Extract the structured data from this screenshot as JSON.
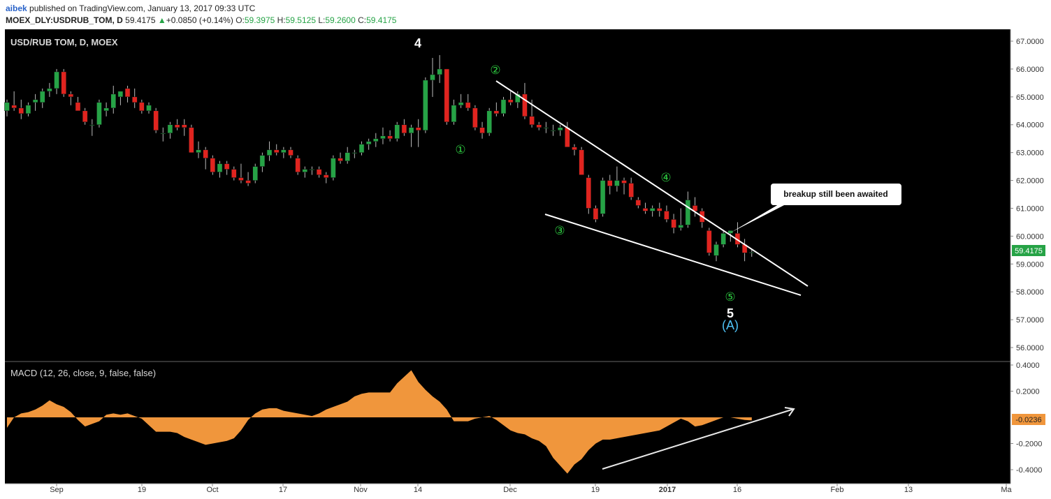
{
  "header": {
    "author": "aibek",
    "published": "published on TradingView.com, January 13, 2017 09:33 UTC",
    "symbol": "MOEX_DLY:USDRUB_TOM, D",
    "last": "59.4175",
    "change": "+0.0850 (+0.14%)",
    "open_label": "O:",
    "open": "59.3975",
    "high_label": "H:",
    "high": "59.5125",
    "low_label": "L:",
    "low": "59.2600",
    "close_label": "C:",
    "close": "59.4175"
  },
  "colors": {
    "up": "#26a346",
    "down": "#e0241f",
    "macd_fill": "#f0963c",
    "wave_green": "#2ecc40",
    "wave_cyan": "#4fc3f7",
    "last_price_bg": "#26a346",
    "macd_value_bg": "#f0963c"
  },
  "chart_data": [
    {
      "type": "candlestick",
      "title": "USD/RUB TOM, D, MOEX",
      "ylim": [
        55.5,
        67.3
      ],
      "y_ticks": [
        "67.0000",
        "66.0000",
        "65.0000",
        "64.0000",
        "63.0000",
        "62.0000",
        "61.0000",
        "60.0000",
        "59.0000",
        "58.0000",
        "57.0000",
        "56.0000"
      ],
      "x_ticks": [
        "Sep",
        "19",
        "Oct",
        "17",
        "Nov",
        "14",
        "Dec",
        "19",
        "2017",
        "16",
        "Feb",
        "13",
        "Ma"
      ],
      "last_price_label": "59.4175",
      "candles": [
        [
          64.5,
          64.9,
          64.3,
          64.8
        ],
        [
          64.7,
          65.2,
          64.5,
          64.6
        ],
        [
          64.6,
          64.9,
          64.2,
          64.4
        ],
        [
          64.4,
          64.8,
          64.3,
          64.7
        ],
        [
          64.8,
          65.1,
          64.5,
          64.9
        ],
        [
          64.8,
          65.3,
          64.6,
          65.2
        ],
        [
          65.2,
          65.5,
          65.0,
          65.3
        ],
        [
          65.3,
          66.0,
          65.1,
          65.9
        ],
        [
          65.9,
          66.0,
          65.0,
          65.1
        ],
        [
          65.1,
          65.2,
          64.7,
          65.0
        ],
        [
          64.8,
          65.0,
          64.5,
          64.5
        ],
        [
          64.5,
          64.6,
          64.0,
          64.1
        ],
        [
          64.0,
          64.2,
          63.6,
          64.0
        ],
        [
          64.0,
          64.9,
          63.9,
          64.8
        ],
        [
          64.5,
          64.8,
          64.3,
          64.6
        ],
        [
          64.6,
          65.4,
          64.4,
          65.1
        ],
        [
          65.0,
          65.2,
          64.7,
          65.2
        ],
        [
          65.3,
          65.4,
          64.8,
          65.0
        ],
        [
          65.0,
          65.3,
          64.6,
          64.8
        ],
        [
          64.8,
          64.9,
          64.4,
          64.5
        ],
        [
          64.5,
          64.8,
          64.4,
          64.7
        ],
        [
          64.5,
          64.6,
          63.7,
          63.8
        ],
        [
          63.7,
          63.9,
          63.4,
          63.7
        ],
        [
          63.7,
          64.1,
          63.5,
          64.0
        ],
        [
          64.0,
          64.2,
          63.8,
          63.9
        ],
        [
          64.0,
          64.2,
          63.6,
          63.9
        ],
        [
          63.9,
          64.0,
          63.0,
          63.0
        ],
        [
          63.0,
          63.4,
          62.8,
          63.1
        ],
        [
          63.1,
          63.2,
          62.4,
          62.8
        ],
        [
          62.8,
          62.9,
          62.2,
          62.3
        ],
        [
          62.3,
          62.7,
          62.1,
          62.6
        ],
        [
          62.6,
          62.7,
          62.2,
          62.4
        ],
        [
          62.4,
          62.5,
          62.0,
          62.1
        ],
        [
          62.1,
          62.6,
          61.9,
          62.0
        ],
        [
          62.0,
          62.3,
          61.8,
          61.9
        ],
        [
          62.0,
          62.6,
          61.9,
          62.5
        ],
        [
          62.5,
          63.0,
          62.3,
          62.9
        ],
        [
          62.9,
          63.4,
          62.7,
          63.1
        ],
        [
          63.1,
          63.3,
          62.9,
          63.0
        ],
        [
          63.0,
          63.2,
          62.8,
          63.1
        ],
        [
          63.1,
          63.2,
          62.8,
          62.9
        ],
        [
          62.8,
          62.9,
          62.2,
          62.3
        ],
        [
          62.3,
          62.5,
          62.1,
          62.4
        ],
        [
          62.4,
          62.5,
          62.2,
          62.4
        ],
        [
          62.4,
          62.5,
          62.1,
          62.2
        ],
        [
          62.2,
          62.3,
          61.9,
          62.1
        ],
        [
          62.1,
          62.9,
          62.0,
          62.8
        ],
        [
          62.8,
          63.0,
          62.6,
          62.7
        ],
        [
          62.7,
          63.2,
          62.6,
          63.0
        ],
        [
          63.0,
          63.1,
          62.8,
          63.0
        ],
        [
          63.0,
          63.4,
          62.9,
          63.3
        ],
        [
          63.3,
          63.5,
          63.1,
          63.4
        ],
        [
          63.4,
          63.7,
          63.2,
          63.5
        ],
        [
          63.5,
          63.9,
          63.3,
          63.6
        ],
        [
          63.6,
          63.8,
          63.4,
          63.5
        ],
        [
          63.5,
          64.1,
          63.4,
          64.0
        ],
        [
          64.0,
          64.2,
          63.6,
          63.7
        ],
        [
          63.7,
          64.0,
          63.2,
          63.9
        ],
        [
          63.9,
          64.2,
          63.2,
          63.8
        ],
        [
          63.8,
          65.7,
          63.7,
          65.6
        ],
        [
          65.6,
          66.4,
          65.0,
          65.8
        ],
        [
          65.8,
          66.5,
          65.5,
          66.0
        ],
        [
          66.0,
          66.0,
          64.0,
          64.1
        ],
        [
          64.1,
          64.9,
          64.0,
          64.7
        ],
        [
          64.7,
          65.1,
          64.6,
          64.8
        ],
        [
          64.8,
          65.1,
          64.5,
          64.6
        ],
        [
          64.6,
          64.7,
          63.8,
          63.9
        ],
        [
          63.9,
          64.1,
          63.5,
          63.7
        ],
        [
          63.7,
          64.6,
          63.6,
          64.5
        ],
        [
          64.5,
          64.8,
          64.3,
          64.4
        ],
        [
          64.4,
          65.0,
          64.3,
          64.9
        ],
        [
          64.9,
          65.2,
          64.7,
          64.8
        ],
        [
          64.8,
          65.2,
          64.6,
          65.1
        ],
        [
          65.1,
          65.5,
          64.2,
          64.3
        ],
        [
          64.3,
          64.9,
          63.9,
          64.0
        ],
        [
          64.0,
          64.1,
          63.8,
          63.9
        ],
        [
          63.9,
          64.1,
          63.7,
          63.9
        ],
        [
          63.8,
          64.0,
          63.6,
          63.8
        ],
        [
          63.8,
          64.0,
          63.6,
          63.9
        ],
        [
          63.9,
          64.1,
          63.2,
          63.2
        ],
        [
          63.2,
          63.3,
          62.9,
          63.1
        ],
        [
          63.1,
          63.2,
          62.3,
          62.2
        ],
        [
          62.1,
          62.2,
          60.8,
          61.0
        ],
        [
          61.0,
          61.1,
          60.5,
          60.6
        ],
        [
          60.8,
          62.1,
          60.7,
          62.0
        ],
        [
          62.0,
          62.2,
          61.5,
          61.8
        ],
        [
          61.8,
          62.5,
          61.6,
          62.0
        ],
        [
          62.0,
          62.1,
          61.5,
          61.9
        ],
        [
          61.9,
          62.1,
          61.3,
          61.4
        ],
        [
          61.3,
          61.4,
          61.0,
          61.1
        ],
        [
          61.0,
          61.2,
          60.8,
          60.9
        ],
        [
          60.9,
          61.1,
          60.7,
          61.0
        ],
        [
          61.0,
          61.2,
          60.7,
          60.9
        ],
        [
          60.9,
          61.1,
          60.5,
          60.6
        ],
        [
          60.6,
          60.8,
          60.1,
          60.3
        ],
        [
          60.3,
          61.0,
          60.2,
          60.4
        ],
        [
          60.4,
          61.6,
          60.3,
          61.3
        ],
        [
          61.1,
          61.4,
          60.7,
          60.9
        ],
        [
          60.9,
          61.0,
          60.3,
          60.5
        ],
        [
          60.2,
          60.3,
          59.3,
          59.4
        ],
        [
          59.3,
          59.8,
          59.1,
          59.7
        ],
        [
          59.7,
          60.2,
          59.6,
          60.1
        ],
        [
          60.1,
          60.2,
          59.8,
          60.2
        ],
        [
          60.1,
          60.5,
          59.6,
          59.7
        ],
        [
          59.7,
          59.9,
          59.1,
          59.4
        ],
        [
          59.4,
          59.51,
          59.26,
          59.42
        ]
      ],
      "wave_labels": [
        "4",
        "①",
        "②",
        "③",
        "④",
        "⑤",
        "5",
        "(A)"
      ],
      "annotation": "breakup still been awaited"
    },
    {
      "type": "area",
      "title": "MACD (12, 26, close, 9, false, false)",
      "ylim": [
        -0.45,
        0.42
      ],
      "y_ticks": [
        "0.4000",
        "0.2000",
        "-0.2000",
        "-0.4000"
      ],
      "last_value_label": "-0.0236",
      "values": [
        -0.08,
        0.0,
        0.03,
        0.04,
        0.06,
        0.09,
        0.13,
        0.1,
        0.08,
        0.04,
        -0.02,
        -0.07,
        -0.05,
        -0.03,
        0.02,
        0.03,
        0.02,
        0.03,
        0.01,
        -0.01,
        -0.06,
        -0.11,
        -0.11,
        -0.11,
        -0.12,
        -0.15,
        -0.17,
        -0.19,
        -0.21,
        -0.2,
        -0.19,
        -0.18,
        -0.16,
        -0.1,
        -0.02,
        0.03,
        0.06,
        0.07,
        0.07,
        0.05,
        0.04,
        0.03,
        0.02,
        0.01,
        0.03,
        0.06,
        0.08,
        0.1,
        0.12,
        0.16,
        0.18,
        0.19,
        0.19,
        0.19,
        0.19,
        0.26,
        0.31,
        0.36,
        0.27,
        0.21,
        0.16,
        0.12,
        0.06,
        -0.03,
        -0.03,
        -0.03,
        -0.01,
        0.0,
        0.01,
        -0.02,
        -0.06,
        -0.1,
        -0.12,
        -0.13,
        -0.16,
        -0.18,
        -0.22,
        -0.31,
        -0.37,
        -0.43,
        -0.36,
        -0.32,
        -0.25,
        -0.2,
        -0.17,
        -0.17,
        -0.16,
        -0.15,
        -0.14,
        -0.13,
        -0.12,
        -0.11,
        -0.1,
        -0.07,
        -0.04,
        -0.01,
        -0.03,
        -0.07,
        -0.06,
        -0.04,
        -0.02,
        0.0,
        0.0,
        -0.01,
        -0.02,
        -0.0236
      ]
    }
  ]
}
